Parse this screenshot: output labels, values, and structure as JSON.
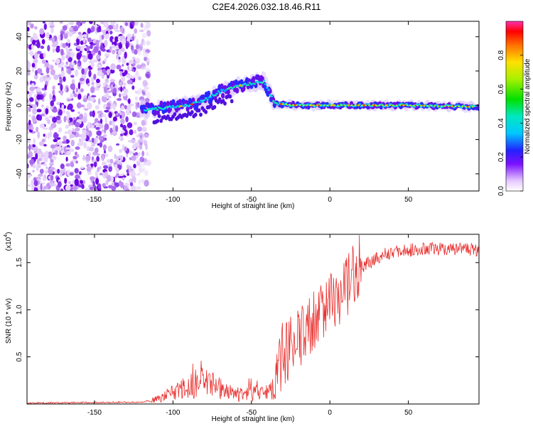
{
  "title": "C2E4.2026.032.18.46.R11",
  "chart_data": [
    {
      "type": "heatmap",
      "name": "spectrogram",
      "xlabel": "Height of straight line (km)",
      "ylabel": "Frequency (Hz)",
      "xlim": [
        -193,
        95
      ],
      "ylim": [
        -50,
        49
      ],
      "xticks": [
        -150,
        -100,
        -50,
        0,
        50
      ],
      "yticks": [
        -40,
        -20,
        0,
        20,
        40
      ],
      "noise_region_x": [
        -193,
        -118
      ],
      "signal_track": [
        {
          "x": -120,
          "y": -3
        },
        {
          "x": -110,
          "y": -2
        },
        {
          "x": -100,
          "y": -1
        },
        {
          "x": -90,
          "y": 0
        },
        {
          "x": -80,
          "y": 3
        },
        {
          "x": -70,
          "y": 8
        },
        {
          "x": -60,
          "y": 11
        },
        {
          "x": -50,
          "y": 13
        },
        {
          "x": -42,
          "y": 14
        },
        {
          "x": -35,
          "y": 1
        },
        {
          "x": -20,
          "y": 0
        },
        {
          "x": 0,
          "y": 0
        },
        {
          "x": 20,
          "y": 0
        },
        {
          "x": 50,
          "y": 0
        },
        {
          "x": 95,
          "y": -1
        }
      ],
      "colorbar": {
        "label": "Normalized spectral amplitude",
        "min": 0,
        "max": 1,
        "ticks": [
          "0.0",
          "0.2",
          "0.4",
          "0.6",
          "0.8"
        ]
      }
    },
    {
      "type": "line",
      "name": "snr",
      "xlabel": "Height of straight line (km)",
      "ylabel": "SNR (10 * v/v)",
      "multiplier": "(x10",
      "exponent": "4",
      "multiplier_close": ")",
      "xlim": [
        -193,
        95
      ],
      "ylim": [
        0,
        1.8
      ],
      "xticks": [
        -150,
        -100,
        -50,
        0,
        50
      ],
      "yticks": [
        "0.5",
        "1.0",
        "1.5"
      ],
      "color": "#e8302e",
      "trend": [
        {
          "x": -193,
          "y": 0.01
        },
        {
          "x": -120,
          "y": 0.02
        },
        {
          "x": -110,
          "y": 0.05
        },
        {
          "x": -100,
          "y": 0.12
        },
        {
          "x": -90,
          "y": 0.18
        },
        {
          "x": -80,
          "y": 0.26
        },
        {
          "x": -70,
          "y": 0.16
        },
        {
          "x": -60,
          "y": 0.1
        },
        {
          "x": -50,
          "y": 0.12
        },
        {
          "x": -40,
          "y": 0.1
        },
        {
          "x": -33,
          "y": 0.25
        },
        {
          "x": -30,
          "y": 0.55
        },
        {
          "x": -20,
          "y": 0.65
        },
        {
          "x": -10,
          "y": 0.85
        },
        {
          "x": 0,
          "y": 1.05
        },
        {
          "x": 10,
          "y": 1.25
        },
        {
          "x": 20,
          "y": 1.45
        },
        {
          "x": 35,
          "y": 1.6
        },
        {
          "x": 60,
          "y": 1.65
        },
        {
          "x": 95,
          "y": 1.63
        }
      ]
    }
  ]
}
